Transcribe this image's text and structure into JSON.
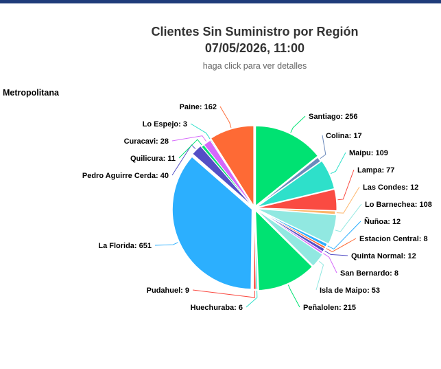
{
  "header": {
    "title_line1": "Clientes Sin Suministro por Región",
    "title_line2": "07/05/2026, 11:00",
    "subtitle": "haga click para ver detalles"
  },
  "section": {
    "region_label": "Metropolitana"
  },
  "chart_data": {
    "type": "pie",
    "title": "Clientes Sin Suministro por Región",
    "slices": [
      {
        "name": "Santiago",
        "value": 256,
        "color": "#00e272"
      },
      {
        "name": "Colina",
        "value": 17,
        "color": "#6b8abc"
      },
      {
        "name": "Maipu",
        "value": 109,
        "color": "#2ee0ca"
      },
      {
        "name": "Lampa",
        "value": 77,
        "color": "#fa4b42"
      },
      {
        "name": "Las Condes",
        "value": 12,
        "color": "#feb56a"
      },
      {
        "name": "Lo Barnechea",
        "value": 108,
        "color": "#91e8e1"
      },
      {
        "name": "Ñuñoa",
        "value": 12,
        "color": "#2caffe"
      },
      {
        "name": "Estacion Central",
        "value": 8,
        "color": "#fe6a35"
      },
      {
        "name": "Quinta Normal",
        "value": 12,
        "color": "#544fc5"
      },
      {
        "name": "San Bernardo",
        "value": 8,
        "color": "#d568fb"
      },
      {
        "name": "Isla de Maipo",
        "value": 53,
        "color": "#91e8e1"
      },
      {
        "name": "Peñalolen",
        "value": 215,
        "color": "#00e272"
      },
      {
        "name": "Huechuraba",
        "value": 6,
        "color": "#2ee0ca"
      },
      {
        "name": "Pudahuel",
        "value": 9,
        "color": "#fa4b42"
      },
      {
        "name": "La Florida",
        "value": 651,
        "color": "#2caffe"
      },
      {
        "name": "Pedro Aguirre Cerda",
        "value": 40,
        "color": "#544fc5"
      },
      {
        "name": "Quilicura",
        "value": 11,
        "color": "#00e272"
      },
      {
        "name": "Curacavi",
        "value": 28,
        "color": "#d568fb"
      },
      {
        "name": "Lo Espejo",
        "value": 3,
        "color": "#2ee0ca"
      },
      {
        "name": "Paine",
        "value": 162,
        "color": "#fe6a35"
      }
    ]
  }
}
